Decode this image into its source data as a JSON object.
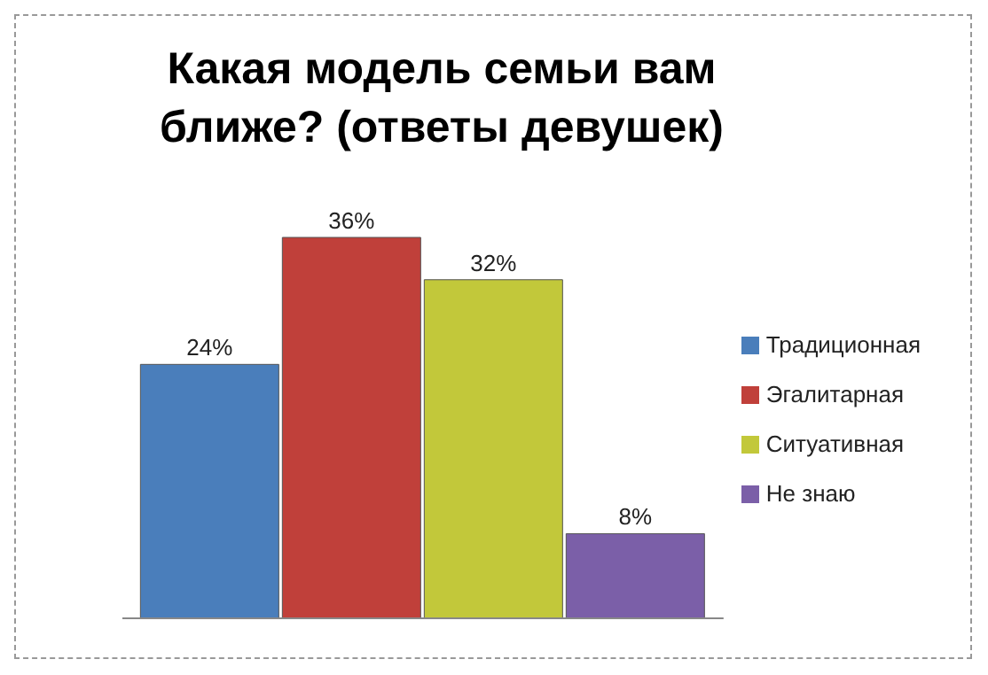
{
  "chart_data": {
    "type": "bar",
    "title": "Какая модель семьи вам ближе? (ответы девушек)",
    "categories": [
      null
    ],
    "series": [
      {
        "name": "Традиционная",
        "color": "#4a7ebb",
        "values": [
          24
        ],
        "value_labels": [
          "24%"
        ]
      },
      {
        "name": "Эгалитарная",
        "color": "#c0403a",
        "values": [
          36
        ],
        "value_labels": [
          "36%"
        ]
      },
      {
        "name": "Ситуативная",
        "color": "#c2c83a",
        "values": [
          32
        ],
        "value_labels": [
          "32%"
        ]
      },
      {
        "name": "Не знаю",
        "color": "#7b5fa8",
        "values": [
          8
        ],
        "value_labels": [
          "8%"
        ]
      }
    ],
    "legend": "right",
    "grid": false
  }
}
